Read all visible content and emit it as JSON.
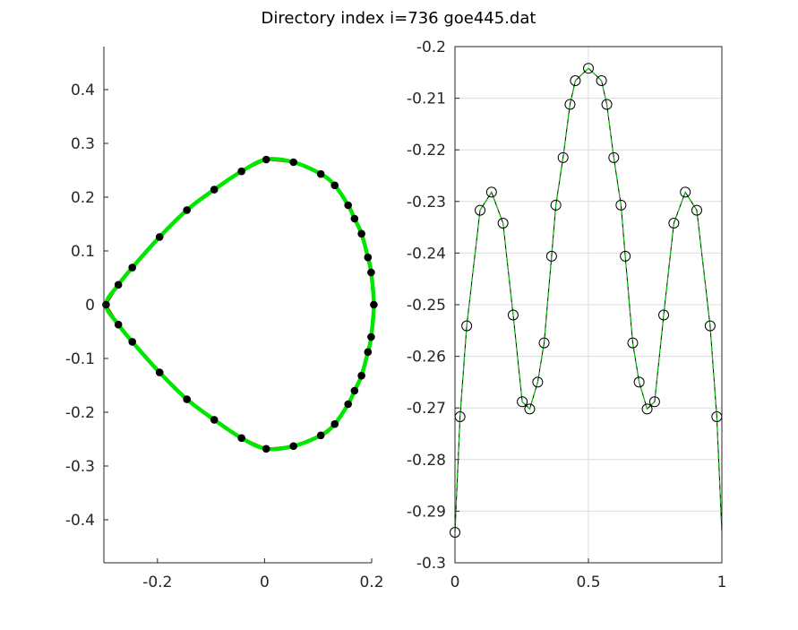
{
  "figure": {
    "title": "Directory index i=736 goe445.dat"
  },
  "chart_data": [
    {
      "type": "scatter",
      "xlim": [
        -0.3,
        0.2
      ],
      "ylim": [
        -0.48,
        0.48
      ],
      "grid": false,
      "x_ticks": [
        -0.2,
        0,
        0.2
      ],
      "x_tick_labels": [
        "-0.2",
        "0",
        "0.2"
      ],
      "y_ticks": [
        0.4,
        0.3,
        0.2,
        0.1,
        0,
        -0.1,
        -0.2,
        -0.3,
        -0.4
      ],
      "y_tick_labels": [
        "0.4",
        "0.3",
        "0.2",
        "0.1",
        "0",
        "-0.1",
        "-0.2",
        "-0.3",
        "-0.4"
      ],
      "colors": {
        "points": "#000000",
        "red_curve": "#e8120a",
        "green_curve": "#00e600"
      },
      "points": [
        {
          "x": -0.296,
          "y": 0.0
        },
        {
          "x": -0.273,
          "y": 0.037
        },
        {
          "x": -0.247,
          "y": 0.069
        },
        {
          "x": -0.196,
          "y": 0.126
        },
        {
          "x": -0.145,
          "y": 0.176
        },
        {
          "x": -0.094,
          "y": 0.214
        },
        {
          "x": -0.043,
          "y": 0.248
        },
        {
          "x": 0.003,
          "y": 0.27
        },
        {
          "x": 0.054,
          "y": 0.265
        },
        {
          "x": 0.105,
          "y": 0.243
        },
        {
          "x": 0.131,
          "y": 0.222
        },
        {
          "x": 0.156,
          "y": 0.185
        },
        {
          "x": 0.168,
          "y": 0.16
        },
        {
          "x": 0.181,
          "y": 0.132
        },
        {
          "x": 0.193,
          "y": 0.088
        },
        {
          "x": 0.199,
          "y": 0.06
        },
        {
          "x": 0.204,
          "y": 0.0
        },
        {
          "x": 0.199,
          "y": -0.06
        },
        {
          "x": 0.193,
          "y": -0.088
        },
        {
          "x": 0.181,
          "y": -0.132
        },
        {
          "x": 0.168,
          "y": -0.16
        },
        {
          "x": 0.156,
          "y": -0.185
        },
        {
          "x": 0.131,
          "y": -0.222
        },
        {
          "x": 0.105,
          "y": -0.243
        },
        {
          "x": 0.054,
          "y": -0.263
        },
        {
          "x": 0.003,
          "y": -0.268
        },
        {
          "x": -0.043,
          "y": -0.248
        },
        {
          "x": -0.094,
          "y": -0.214
        },
        {
          "x": -0.145,
          "y": -0.176
        },
        {
          "x": -0.196,
          "y": -0.126
        },
        {
          "x": -0.247,
          "y": -0.069
        },
        {
          "x": -0.273,
          "y": -0.037
        }
      ]
    },
    {
      "type": "line",
      "xlim": [
        0,
        1
      ],
      "ylim": [
        -0.3,
        -0.2
      ],
      "grid": true,
      "x_ticks": [
        0,
        0.5,
        1
      ],
      "x_tick_labels": [
        "0",
        "0.5",
        "1"
      ],
      "y_ticks": [
        -0.2,
        -0.21,
        -0.22,
        -0.23,
        -0.24,
        -0.25,
        -0.26,
        -0.27,
        -0.28,
        -0.29,
        -0.3
      ],
      "y_tick_labels": [
        "-0.2",
        "-0.21",
        "-0.22",
        "-0.23",
        "-0.24",
        "-0.25",
        "-0.26",
        "-0.27",
        "-0.28",
        "-0.29",
        "-0.3"
      ],
      "colors": {
        "black_line": "#000000",
        "markers": "#000000",
        "green_dashed": "#00c800"
      },
      "x": [
        0.0,
        0.019,
        0.044,
        0.094,
        0.137,
        0.18,
        0.218,
        0.252,
        0.28,
        0.31,
        0.334,
        0.362,
        0.378,
        0.405,
        0.431,
        0.451,
        0.5,
        0.549,
        0.569,
        0.595,
        0.622,
        0.638,
        0.666,
        0.69,
        0.72,
        0.748,
        0.782,
        0.82,
        0.863,
        0.906,
        0.956,
        0.981,
        1.0
      ],
      "y": [
        -0.2941,
        -0.2717,
        -0.2541,
        -0.2317,
        -0.2282,
        -0.2342,
        -0.252,
        -0.2688,
        -0.2702,
        -0.265,
        -0.2574,
        -0.2406,
        -0.2307,
        -0.2215,
        -0.2112,
        -0.2066,
        -0.2042,
        -0.2066,
        -0.2112,
        -0.2215,
        -0.2307,
        -0.2406,
        -0.2574,
        -0.265,
        -0.2702,
        -0.2688,
        -0.252,
        -0.2342,
        -0.2282,
        -0.2317,
        -0.2541,
        -0.2717,
        -0.2941
      ]
    }
  ]
}
